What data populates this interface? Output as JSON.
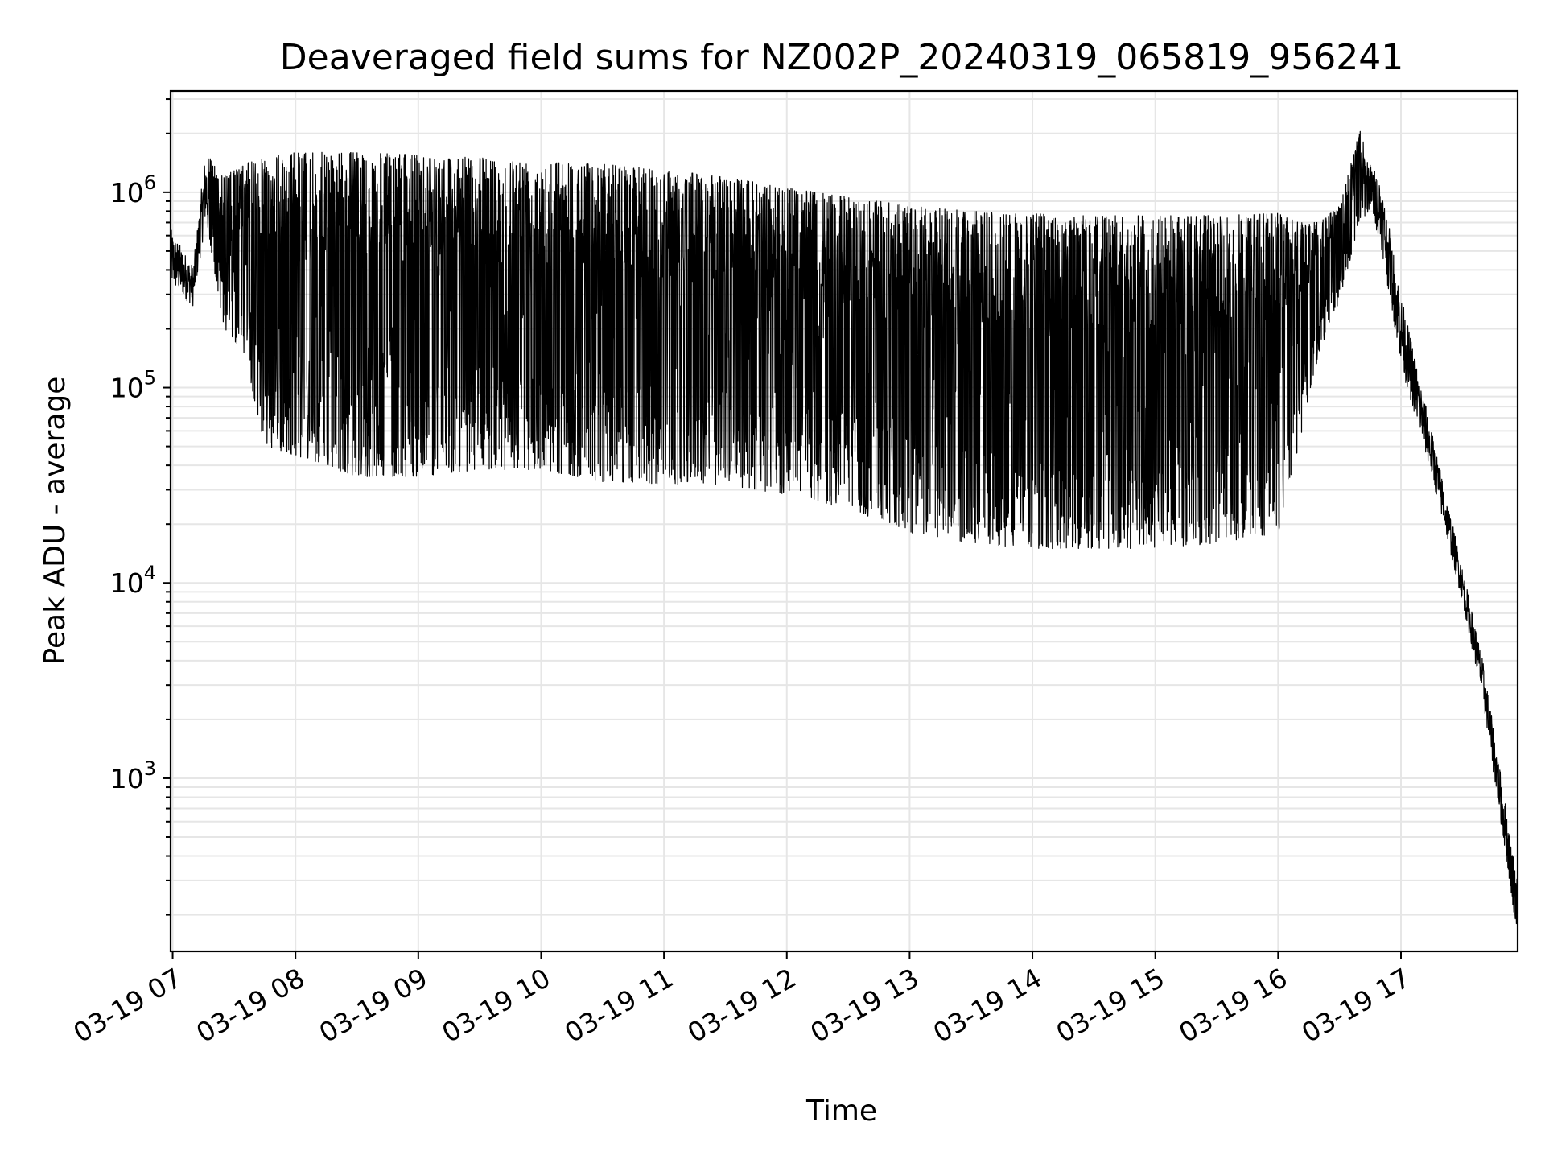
{
  "chart_data": {
    "type": "line",
    "title": "Deaveraged field sums for NZ002P_20240319_065819_956241",
    "xlabel": "Time",
    "ylabel": "Peak ADU - average",
    "yscale": "log",
    "xlim": [
      "2024-03-19 06:59",
      "2024-03-19 17:57"
    ],
    "ylim": [
      130,
      3300000
    ],
    "grid": true,
    "legend": "none",
    "line_color": "#000000",
    "x_ticks": [
      "03-19 07",
      "03-19 08",
      "03-19 09",
      "03-19 10",
      "03-19 11",
      "03-19 12",
      "03-19 13",
      "03-19 14",
      "03-19 15",
      "03-19 16",
      "03-19 17"
    ],
    "y_ticks": [
      {
        "base": "10",
        "exp": "3",
        "value": 1000
      },
      {
        "base": "10",
        "exp": "4",
        "value": 10000
      },
      {
        "base": "10",
        "exp": "5",
        "value": 100000
      },
      {
        "base": "10",
        "exp": "6",
        "value": 1000000
      }
    ],
    "envelope": [
      {
        "time": "2024-03-19 06:59",
        "low": 330000,
        "high": 650000
      },
      {
        "time": "2024-03-19 07:10",
        "low": 260000,
        "high": 420000
      },
      {
        "time": "2024-03-19 07:16",
        "low": 700000,
        "high": 1600000
      },
      {
        "time": "2024-03-19 07:25",
        "low": 200000,
        "high": 1200000
      },
      {
        "time": "2024-03-19 07:35",
        "low": 150000,
        "high": 1400000
      },
      {
        "time": "2024-03-19 07:45",
        "low": 50000,
        "high": 1500000
      },
      {
        "time": "2024-03-19 08:00",
        "low": 45000,
        "high": 1600000
      },
      {
        "time": "2024-03-19 08:30",
        "low": 35000,
        "high": 1600000
      },
      {
        "time": "2024-03-19 09:00",
        "low": 35000,
        "high": 1550000
      },
      {
        "time": "2024-03-19 09:30",
        "low": 38000,
        "high": 1500000
      },
      {
        "time": "2024-03-19 10:00",
        "low": 38000,
        "high": 1450000
      },
      {
        "time": "2024-03-19 10:30",
        "low": 33000,
        "high": 1400000
      },
      {
        "time": "2024-03-19 11:00",
        "low": 32000,
        "high": 1300000
      },
      {
        "time": "2024-03-19 11:30",
        "low": 32000,
        "high": 1200000
      },
      {
        "time": "2024-03-19 12:00",
        "low": 28000,
        "high": 1050000
      },
      {
        "time": "2024-03-19 12:30",
        "low": 24000,
        "high": 950000
      },
      {
        "time": "2024-03-19 13:00",
        "low": 18000,
        "high": 850000
      },
      {
        "time": "2024-03-19 13:30",
        "low": 16000,
        "high": 800000
      },
      {
        "time": "2024-03-19 14:00",
        "low": 15000,
        "high": 780000
      },
      {
        "time": "2024-03-19 14:30",
        "low": 15000,
        "high": 760000
      },
      {
        "time": "2024-03-19 15:00",
        "low": 15000,
        "high": 760000
      },
      {
        "time": "2024-03-19 15:30",
        "low": 16000,
        "high": 760000
      },
      {
        "time": "2024-03-19 16:00",
        "low": 18000,
        "high": 780000
      },
      {
        "time": "2024-03-19 16:10",
        "low": 50000,
        "high": 700000
      },
      {
        "time": "2024-03-19 16:20",
        "low": 150000,
        "high": 700000
      },
      {
        "time": "2024-03-19 16:30",
        "low": 280000,
        "high": 850000
      },
      {
        "time": "2024-03-19 16:40",
        "low": 700000,
        "high": 2100000
      },
      {
        "time": "2024-03-19 16:45",
        "low": 800000,
        "high": 1400000
      },
      {
        "time": "2024-03-19 16:50",
        "low": 550000,
        "high": 1200000
      },
      {
        "time": "2024-03-19 17:00",
        "low": 130000,
        "high": 300000
      },
      {
        "time": "2024-03-19 17:15",
        "low": 35000,
        "high": 60000
      },
      {
        "time": "2024-03-19 17:30",
        "low": 8000,
        "high": 12000
      },
      {
        "time": "2024-03-19 17:40",
        "low": 2500,
        "high": 4000
      },
      {
        "time": "2024-03-19 17:57",
        "low": 150,
        "high": 300
      }
    ]
  }
}
